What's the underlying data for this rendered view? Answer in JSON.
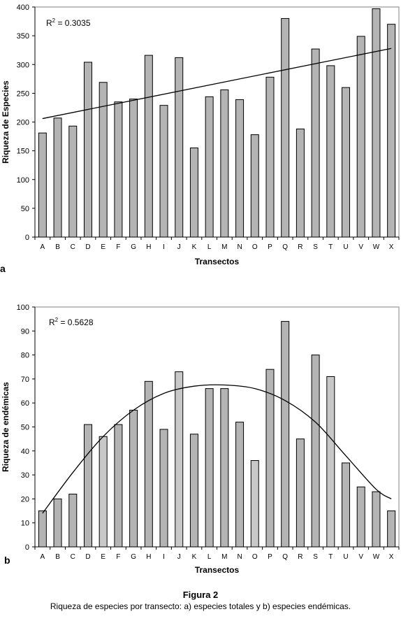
{
  "chart_data": [
    {
      "type": "bar",
      "panel_label": "a",
      "categories": [
        "A",
        "B",
        "C",
        "D",
        "E",
        "F",
        "G",
        "H",
        "I",
        "J",
        "K",
        "L",
        "M",
        "N",
        "O",
        "P",
        "Q",
        "R",
        "S",
        "T",
        "U",
        "V",
        "W",
        "X"
      ],
      "values": [
        181,
        207,
        193,
        304,
        269,
        235,
        240,
        316,
        229,
        312,
        155,
        244,
        256,
        239,
        178,
        278,
        380,
        188,
        327,
        298,
        260,
        349,
        397,
        370
      ],
      "bar_colors": [
        "#b4b4b4",
        "#b4b4b4",
        "#b4b4b4",
        "#b4b4b4",
        "#b4b4b4",
        "#b4b4b4",
        "#b4b4b4",
        "#b4b4b4",
        "#b4b4b4",
        "#b4b4b4",
        "#b4b4b4",
        "#b4b4b4",
        "#b4b4b4",
        "#b4b4b4",
        "#b4b4b4",
        "#b4b4b4",
        "#b4b4b4",
        "#b4b4b4",
        "#b4b4b4",
        "#b4b4b4",
        "#b4b4b4",
        "#b4b4b4",
        "#b4b4b4",
        "#b4b4b4"
      ],
      "xlabel": "Transectos",
      "ylabel": "Riqueza de Especies",
      "ylim": [
        0,
        400
      ],
      "yticks": [
        0,
        50,
        100,
        150,
        200,
        250,
        300,
        350,
        400
      ],
      "grid": false,
      "annotation": {
        "prefix": "R",
        "sup": "2",
        "suffix": " = 0.3035"
      },
      "trendline": {
        "type": "linear",
        "points": [
          [
            "A",
            206
          ],
          [
            "X",
            328
          ]
        ]
      }
    },
    {
      "type": "bar",
      "panel_label": "b",
      "categories": [
        "A",
        "B",
        "C",
        "D",
        "E",
        "F",
        "G",
        "H",
        "I",
        "J",
        "K",
        "L",
        "M",
        "N",
        "O",
        "P",
        "Q",
        "R",
        "S",
        "T",
        "U",
        "V",
        "W",
        "X"
      ],
      "values": [
        15,
        20,
        22,
        51,
        46,
        51,
        57,
        69,
        49,
        73,
        47,
        66,
        66,
        52,
        36,
        74,
        94,
        45,
        80,
        71,
        35,
        25,
        23,
        15
      ],
      "bar_colors": [
        "#b4b4b4",
        "#b4b4b4",
        "#b4b4b4",
        "#b4b4b4",
        "#c8c8c8",
        "#b4b4b4",
        "#b4b4b4",
        "#b4b4b4",
        "#b4b4b4",
        "#c8c8c8",
        "#b4b4b4",
        "#b4b4b4",
        "#b4b4b4",
        "#b4b4b4",
        "#c8c8c8",
        "#b4b4b4",
        "#b4b4b4",
        "#b4b4b4",
        "#b4b4b4",
        "#c8c8c8",
        "#b4b4b4",
        "#b4b4b4",
        "#b4b4b4",
        "#b4b4b4"
      ],
      "xlabel": "Transectos",
      "ylabel": "Riqueza de endémicas",
      "ylim": [
        0,
        100
      ],
      "yticks": [
        0,
        10,
        20,
        30,
        40,
        50,
        60,
        70,
        80,
        90,
        100
      ],
      "grid": false,
      "annotation": {
        "prefix": "R",
        "sup": "2",
        "suffix": " = 0.5628"
      },
      "trendline": {
        "type": "polynomial",
        "points": [
          [
            "A",
            14
          ],
          [
            "C",
            31
          ],
          [
            "E",
            46
          ],
          [
            "G",
            57
          ],
          [
            "I",
            64
          ],
          [
            "K",
            67
          ],
          [
            "M",
            67.5
          ],
          [
            "O",
            66
          ],
          [
            "Q",
            61
          ],
          [
            "S",
            52
          ],
          [
            "U",
            38
          ],
          [
            "W",
            24
          ],
          [
            "X",
            20
          ]
        ]
      }
    }
  ],
  "caption": {
    "title": "Figura 2",
    "text": "Riqueza de especies por transecto: a) especies totales y b) especies endémicas."
  }
}
